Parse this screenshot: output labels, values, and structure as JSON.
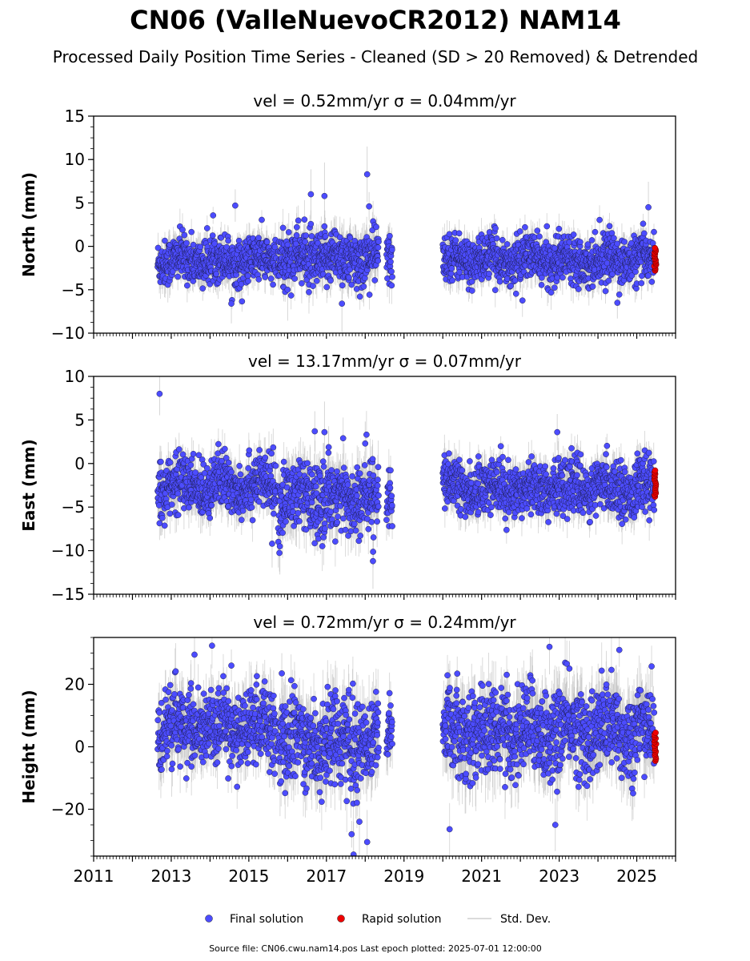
{
  "figure": {
    "title": "CN06 (ValleNuevoCR2012) NAM14",
    "subtitle": "Processed Daily Position Time Series - Cleaned (SD > 20 Removed) & Detrended",
    "footer": "Source file: CN06.cwu.nam14.pos  Last epoch plotted: 2025-07-01 12:00:00"
  },
  "legend": {
    "placement": "bottom-center",
    "items": [
      {
        "label": "Final solution",
        "color": "#4c4cff",
        "marker": "circle"
      },
      {
        "label": "Rapid solution",
        "color": "#ee0000",
        "marker": "circle"
      },
      {
        "label": "Std. Dev.",
        "color": "#cfcfcf",
        "marker": "line"
      }
    ]
  },
  "chart_data": [
    {
      "type": "scatter",
      "title": "vel = 0.52mm/yr   σ = 0.04mm/yr",
      "ylabel": "North (mm)",
      "xlim": [
        2011.0,
        2026.0
      ],
      "ylim": [
        -10,
        15
      ],
      "yticks": [
        -10,
        -5,
        0,
        5,
        10,
        15
      ],
      "ytick_labels": [
        "−10",
        "−5",
        "0",
        "5",
        "10",
        "15"
      ],
      "series": [
        {
          "name": "Final solution",
          "color": "#4c4cff",
          "segments": [
            {
              "x_start": 2012.65,
              "x_end": 2015.7,
              "mean": -1.6,
              "spread": 1.3
            },
            {
              "x_start": 2015.75,
              "x_end": 2018.35,
              "mean": -1.4,
              "spread": 1.6
            },
            {
              "x_start": 2018.55,
              "x_end": 2018.7,
              "mean": -1.2,
              "spread": 1.5
            },
            {
              "x_start": 2020.0,
              "x_end": 2025.45,
              "mean": -1.5,
              "spread": 1.3
            }
          ],
          "outliers": [
            [
              2014.65,
              4.7
            ],
            [
              2016.6,
              6.0
            ],
            [
              2016.95,
              5.8
            ],
            [
              2018.05,
              8.3
            ],
            [
              2018.1,
              4.6
            ],
            [
              2025.3,
              4.5
            ],
            [
              2014.55,
              -6.6
            ],
            [
              2017.4,
              -6.6
            ],
            [
              2016.0,
              -5.0
            ],
            [
              2024.5,
              -6.5
            ]
          ]
        },
        {
          "name": "Rapid solution",
          "color": "#ee0000",
          "segments": [
            {
              "x_start": 2025.45,
              "x_end": 2025.5,
              "mean": -1.5,
              "spread": 1.3
            }
          ]
        }
      ]
    },
    {
      "type": "scatter",
      "title": "vel = 13.17mm/yr   σ = 0.07mm/yr",
      "ylabel": "East (mm)",
      "xlim": [
        2011.0,
        2026.0
      ],
      "ylim": [
        -15,
        10
      ],
      "yticks": [
        -15,
        -10,
        -5,
        0,
        5,
        10
      ],
      "ytick_labels": [
        "−15",
        "−10",
        "−5",
        "0",
        "5",
        "10"
      ],
      "series": [
        {
          "name": "Final solution",
          "color": "#4c4cff",
          "segments": [
            {
              "x_start": 2012.65,
              "x_end": 2015.7,
              "mean": -2.5,
              "spread": 1.6
            },
            {
              "x_start": 2015.75,
              "x_end": 2018.35,
              "mean": -4.0,
              "spread": 2.0
            },
            {
              "x_start": 2018.55,
              "x_end": 2018.7,
              "mean": -3.5,
              "spread": 1.6
            },
            {
              "x_start": 2020.0,
              "x_end": 2025.45,
              "mean": -2.8,
              "spread": 1.5
            }
          ],
          "outliers": [
            [
              2012.7,
              8.0
            ],
            [
              2016.7,
              3.7
            ],
            [
              2016.95,
              3.6
            ],
            [
              2018.2,
              -11.2
            ],
            [
              2015.6,
              -9.2
            ],
            [
              2015.8,
              -9.5
            ],
            [
              2018.0,
              2.3
            ],
            [
              2022.95,
              3.6
            ]
          ]
        },
        {
          "name": "Rapid solution",
          "color": "#ee0000",
          "segments": [
            {
              "x_start": 2025.45,
              "x_end": 2025.5,
              "mean": -2.3,
              "spread": 1.5
            }
          ]
        }
      ]
    },
    {
      "type": "scatter",
      "title": "vel = 0.72mm/yr   σ = 0.24mm/yr",
      "ylabel": "Height (mm)",
      "xlim": [
        2011.0,
        2026.0
      ],
      "ylim": [
        -35,
        35
      ],
      "yticks": [
        -20,
        0,
        20
      ],
      "ytick_labels": [
        "−20",
        "0",
        "20"
      ],
      "xticks": [
        2011,
        2013,
        2015,
        2017,
        2019,
        2021,
        2023,
        2025
      ],
      "xtick_labels": [
        "2011",
        "2013",
        "2015",
        "2017",
        "2019",
        "2021",
        "2023",
        "2025"
      ],
      "series": [
        {
          "name": "Final solution",
          "color": "#4c4cff",
          "segments": [
            {
              "x_start": 2012.65,
              "x_end": 2015.7,
              "mean": 6.0,
              "spread": 6.0
            },
            {
              "x_start": 2015.75,
              "x_end": 2018.35,
              "mean": 2.0,
              "spread": 7.0
            },
            {
              "x_start": 2018.55,
              "x_end": 2018.7,
              "mean": 5.0,
              "spread": 5.0
            },
            {
              "x_start": 2020.0,
              "x_end": 2025.45,
              "mean": 5.0,
              "spread": 7.0
            }
          ],
          "outliers": [
            [
              2013.6,
              29.5
            ],
            [
              2014.55,
              26.0
            ],
            [
              2022.75,
              32.0
            ],
            [
              2024.55,
              31.0
            ],
            [
              2017.65,
              -28.0
            ],
            [
              2017.7,
              -34.5
            ],
            [
              2018.05,
              -30.5
            ],
            [
              2022.9,
              -25.0
            ],
            [
              2017.85,
              -24.0
            ],
            [
              2015.85,
              23.5
            ]
          ]
        },
        {
          "name": "Rapid solution",
          "color": "#ee0000",
          "segments": [
            {
              "x_start": 2025.45,
              "x_end": 2025.5,
              "mean": 0.0,
              "spread": 4.5
            }
          ]
        }
      ]
    }
  ]
}
